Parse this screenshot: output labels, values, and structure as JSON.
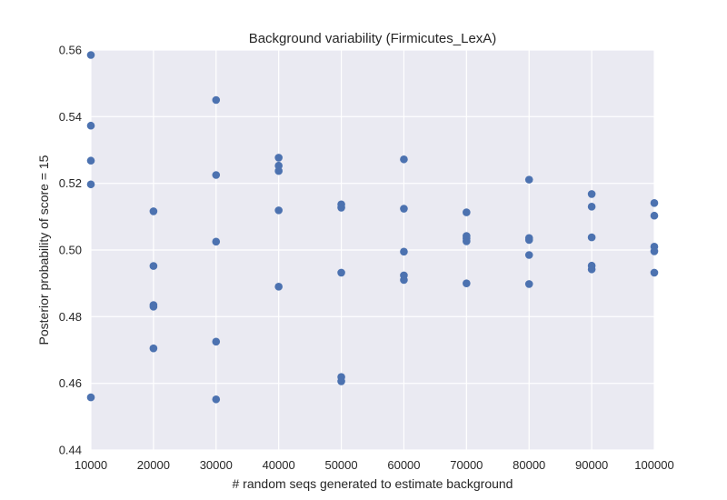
{
  "chart_data": {
    "type": "scatter",
    "title": "Background variability (Firmicutes_LexA)",
    "xlabel": "# random seqs generated to estimate background",
    "ylabel": "Posterior probability of score = 15",
    "xlim": [
      10000,
      100000
    ],
    "ylim": [
      0.44,
      0.56
    ],
    "xticks": [
      "10000",
      "20000",
      "30000",
      "40000",
      "50000",
      "60000",
      "70000",
      "80000",
      "90000",
      "100000"
    ],
    "yticks": [
      "0.44",
      "0.46",
      "0.48",
      "0.50",
      "0.52",
      "0.54",
      "0.56"
    ],
    "grid": true,
    "background_color": "#EAEAF2",
    "grid_color": "#FFFFFF",
    "marker_color": "#4C72B0",
    "points": [
      [
        10000,
        0.5585
      ],
      [
        10000,
        0.5373
      ],
      [
        10000,
        0.5268
      ],
      [
        10000,
        0.5197
      ],
      [
        10000,
        0.4558
      ],
      [
        20000,
        0.5116
      ],
      [
        20000,
        0.4952
      ],
      [
        20000,
        0.4835
      ],
      [
        20000,
        0.483
      ],
      [
        20000,
        0.4705
      ],
      [
        30000,
        0.545
      ],
      [
        30000,
        0.5225
      ],
      [
        30000,
        0.5025
      ],
      [
        30000,
        0.4725
      ],
      [
        30000,
        0.4552
      ],
      [
        40000,
        0.5277
      ],
      [
        40000,
        0.5253
      ],
      [
        40000,
        0.5237
      ],
      [
        40000,
        0.5119
      ],
      [
        40000,
        0.489
      ],
      [
        50000,
        0.5137
      ],
      [
        50000,
        0.5127
      ],
      [
        50000,
        0.4932
      ],
      [
        50000,
        0.4619
      ],
      [
        50000,
        0.4606
      ],
      [
        60000,
        0.5272
      ],
      [
        60000,
        0.5124
      ],
      [
        60000,
        0.4995
      ],
      [
        60000,
        0.4924
      ],
      [
        60000,
        0.491
      ],
      [
        70000,
        0.5113
      ],
      [
        70000,
        0.5042
      ],
      [
        70000,
        0.5035
      ],
      [
        70000,
        0.5026
      ],
      [
        70000,
        0.49
      ],
      [
        80000,
        0.5211
      ],
      [
        80000,
        0.5036
      ],
      [
        80000,
        0.503
      ],
      [
        80000,
        0.4985
      ],
      [
        80000,
        0.4898
      ],
      [
        90000,
        0.5168
      ],
      [
        90000,
        0.513
      ],
      [
        90000,
        0.5038
      ],
      [
        90000,
        0.4953
      ],
      [
        90000,
        0.4942
      ],
      [
        100000,
        0.5141
      ],
      [
        100000,
        0.5103
      ],
      [
        100000,
        0.501
      ],
      [
        100000,
        0.4996
      ],
      [
        100000,
        0.4932
      ]
    ]
  }
}
